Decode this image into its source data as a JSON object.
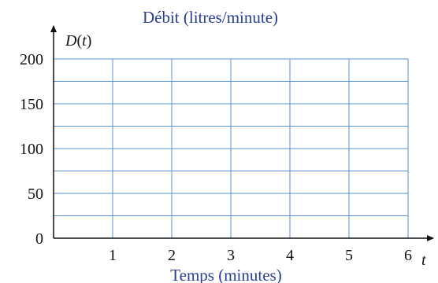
{
  "colors": {
    "grid": "#5b8fd3",
    "axis": "#111111",
    "title": "#2b3d8f"
  },
  "chart_data": {
    "type": "line",
    "title": "Débit (litres/minute)",
    "xlabel": "Temps (minutes)",
    "ylabel": "",
    "y_axis_var": {
      "fn": "D",
      "arg": "t"
    },
    "x_axis_var": "t",
    "xlim": [
      0,
      6
    ],
    "ylim": [
      0,
      200
    ],
    "x_ticks": [
      1,
      2,
      3,
      4,
      5,
      6
    ],
    "y_ticks": [
      0,
      50,
      100,
      150,
      200
    ],
    "x_tick_labels": [
      "1",
      "2",
      "3",
      "4",
      "5",
      "6"
    ],
    "y_tick_labels": [
      "0",
      "50",
      "100",
      "150",
      "200"
    ],
    "grid": true,
    "y_minor_step": 25,
    "x_step": 1,
    "series": []
  }
}
